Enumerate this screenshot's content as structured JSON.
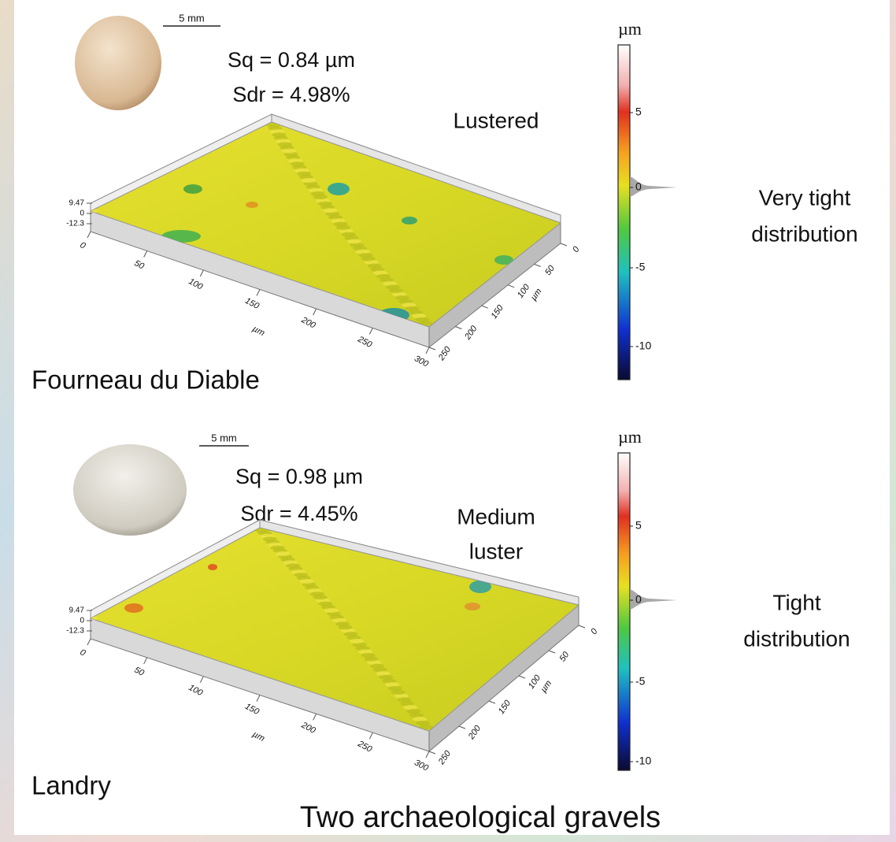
{
  "panels": [
    {
      "scale_bar": "5 mm",
      "sq": "Sq = 0.84 µm",
      "sdr": "Sdr = 4.98%",
      "luster": [
        "Lustered"
      ],
      "site": "Fourneau du Diable",
      "distribution": [
        "Very tight",
        "distribution"
      ],
      "colorbar": {
        "unit": "µm",
        "ticks": [
          5,
          0,
          -5,
          -10
        ]
      },
      "z_ticks": [
        9.47,
        0,
        -12.3
      ],
      "x_ticks": [
        0,
        50,
        100,
        150,
        200,
        250,
        300
      ],
      "x_unit": "µm",
      "y_ticks": [
        0,
        50,
        100,
        150,
        200,
        250
      ],
      "y_unit": "µm"
    },
    {
      "scale_bar": "5 mm",
      "sq": "Sq = 0.98 µm",
      "sdr": "Sdr = 4.45%",
      "luster": [
        "Medium",
        "luster"
      ],
      "site": "Landry",
      "distribution": [
        "Tight",
        "distribution"
      ],
      "colorbar": {
        "unit": "µm",
        "ticks": [
          5,
          0,
          -5,
          -10
        ]
      },
      "z_ticks": [
        9.47,
        0,
        -12.3
      ],
      "x_ticks": [
        0,
        50,
        100,
        150,
        200,
        250,
        300
      ],
      "x_unit": "µm",
      "y_ticks": [
        0,
        50,
        100,
        150,
        200,
        250
      ],
      "y_unit": "µm"
    }
  ],
  "caption": "Two archaeological gravels"
}
